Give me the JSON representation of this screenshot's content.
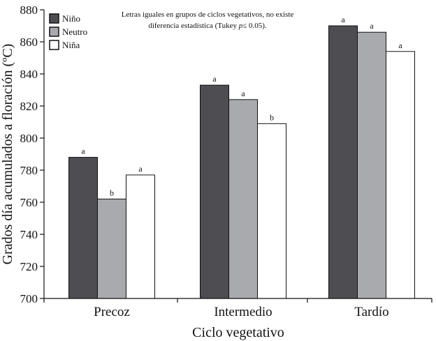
{
  "chart_data": {
    "type": "bar",
    "categories": [
      "Precoz",
      "Intermedio",
      "Tardío"
    ],
    "series": [
      {
        "name": "Niño",
        "color": "#4d4d52",
        "values": [
          788,
          833,
          870
        ],
        "letters": [
          "a",
          "a",
          "a"
        ]
      },
      {
        "name": "Neutro",
        "color": "#a8aaad",
        "values": [
          762,
          824,
          866
        ],
        "letters": [
          "b",
          "a",
          "a"
        ]
      },
      {
        "name": "Niña",
        "color": "#ffffff",
        "values": [
          777,
          809,
          854
        ],
        "letters": [
          "a",
          "b",
          "a"
        ]
      }
    ],
    "xlabel": "Ciclo vegetativo",
    "ylabel": "Grados día acumulados a floración (ºC)",
    "ylim": [
      700,
      880
    ],
    "yticks": [
      700,
      720,
      740,
      760,
      780,
      800,
      820,
      840,
      860,
      880
    ],
    "grid": false,
    "legend_position": "top-left",
    "annotation": {
      "line1": "Letras iguales en grupos de ciclos vegetativos, no existe",
      "line2_prefix": "diferencia estadística (Tukey ",
      "line2_p": "p",
      "line2_suffix": "≤ 0.05)."
    }
  }
}
